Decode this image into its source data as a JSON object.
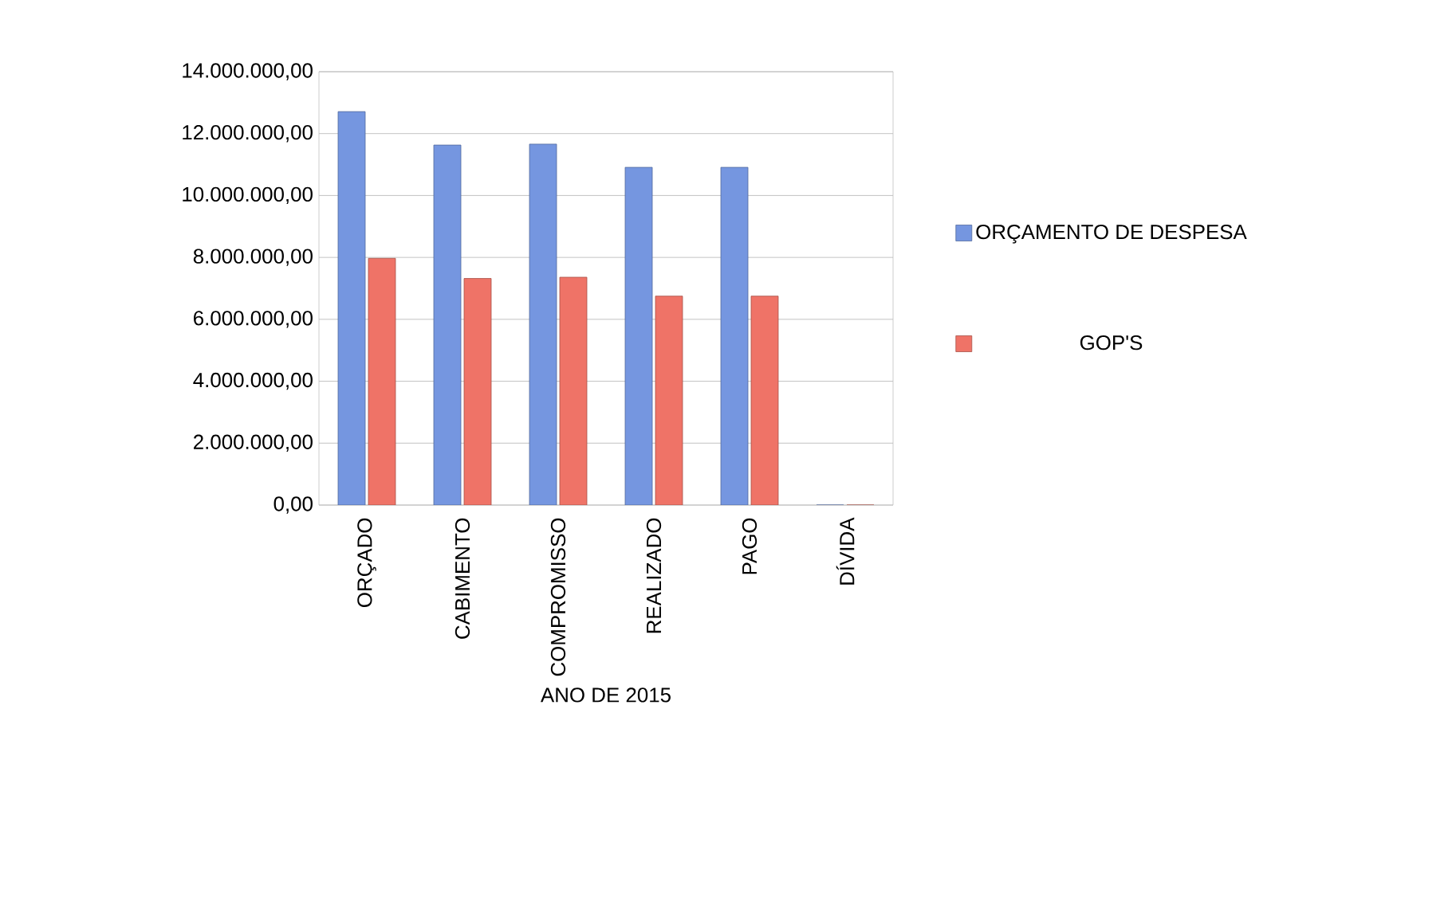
{
  "chart_data": {
    "type": "bar",
    "xlabel": "ANO DE 2015",
    "categories": [
      "ORÇADO",
      "CABIMENTO",
      "COMPROMISSO",
      "REALIZADO",
      "PAGO",
      "DÍVIDA"
    ],
    "series": [
      {
        "name": "ORÇAMENTO DE DESPESA",
        "color": "#7596e0",
        "values": [
          12710000,
          11630000,
          11660000,
          10910000,
          10910000,
          0
        ]
      },
      {
        "name": "GOP'S",
        "color": "#ef7367",
        "values": [
          7970000,
          7320000,
          7360000,
          6750000,
          6750000,
          0
        ]
      }
    ],
    "ylim": [
      0,
      14000000
    ],
    "yticks": [
      {
        "value": 0,
        "label": "0,00"
      },
      {
        "value": 2000000,
        "label": "2.000.000,00"
      },
      {
        "value": 4000000,
        "label": "4.000.000,00"
      },
      {
        "value": 6000000,
        "label": "6.000.000,00"
      },
      {
        "value": 8000000,
        "label": "8.000.000,00"
      },
      {
        "value": 10000000,
        "label": "10.000.000,00"
      },
      {
        "value": 12000000,
        "label": "12.000.000,00"
      },
      {
        "value": 14000000,
        "label": "14.000.000,00"
      }
    ],
    "grid": "y",
    "legend": "right"
  }
}
